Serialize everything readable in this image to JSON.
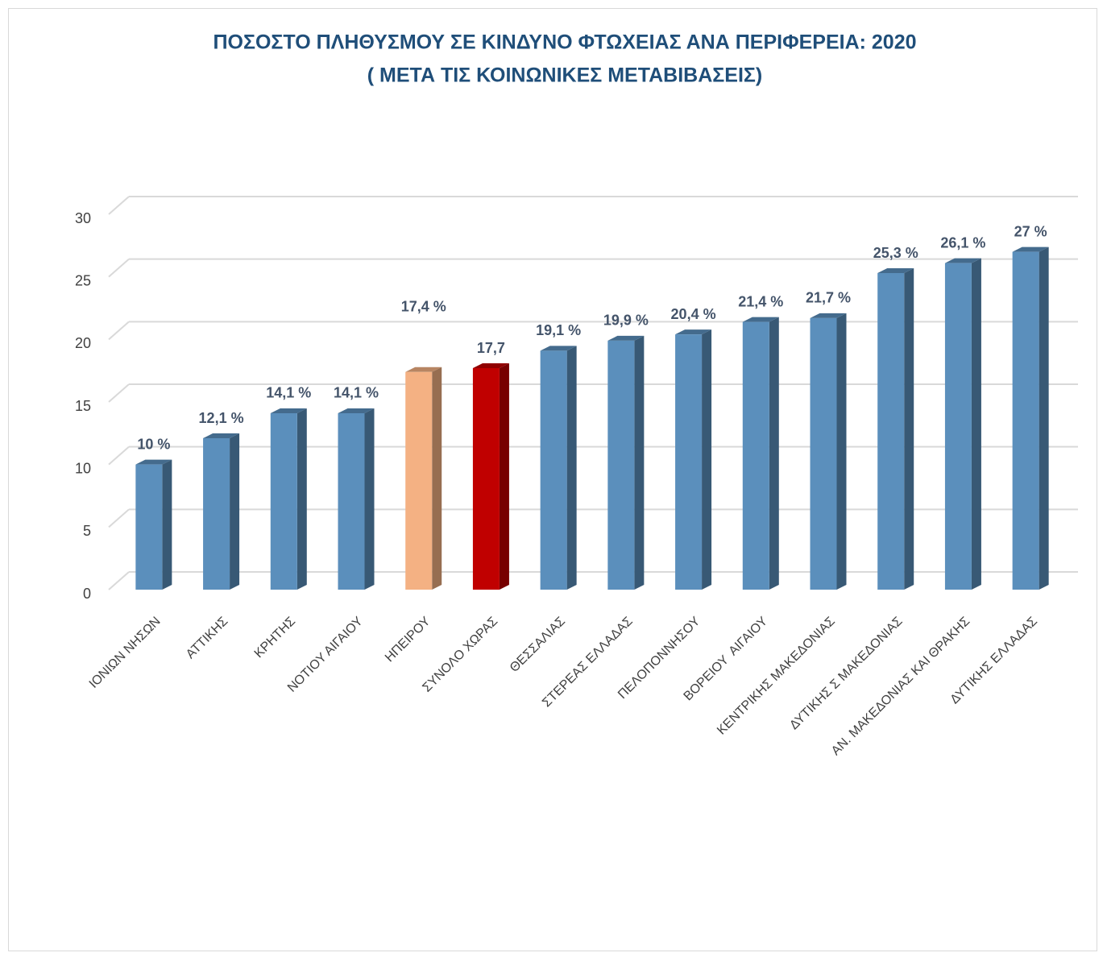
{
  "chart_data": {
    "type": "bar",
    "title": "ΠΟΣΟΣΤΟ ΠΛΗΘΥΣΜΟΥ ΣΕ ΚΙΝΔΥΝΟ ΦΤΩΧΕΙΑΣ ΑΝΑ ΠΕΡΙΦΕΡΕΙΑ: 2020",
    "subtitle": "( ΜΕΤΑ ΤΙΣ ΚΟΙΝΩΝΙΚΕΣ ΜΕΤΑΒΙΒΑΣΕΙΣ)",
    "categories": [
      "ΙΟΝΙΩΝ ΝΗΣΩΝ",
      "ΑΤΤΙΚΗΣ",
      "ΚΡΗΤΗΣ",
      "ΝΟΤΙΟΥ ΑΙΓΑΙΟΥ",
      "ΗΠΕΙΡΟΥ",
      "ΣΥΝΟΛΟ ΧΩΡΑΣ",
      "ΘΕΣΣΑΛΙΑΣ",
      "ΣΤΕΡΕΑΣ ΕΛΛΑΔΑΣ",
      "ΠΕΛΟΠΟΝΝΗΣΟΥ",
      "ΒΟΡΕΙΟΥ  ΑΙΓΑΙΟΥ",
      "ΚΕΝΤΡΙΚΗΣ ΜΑΚΕΔΟΝΙΑΣ",
      "ΔΥΤΙΚΗΣ Σ ΜΑΚΕΔΟΝΙΑΣ",
      "ΑΝ. ΜΑΚΕΔΟΝΙΑΣ ΚΑΙ ΘΡΑΚΗΣ",
      "ΔΥΤΙΚΗΣ ΕΛΛΑΔΑΣ"
    ],
    "values": [
      10,
      12.1,
      14.1,
      14.1,
      17.4,
      17.7,
      19.1,
      19.9,
      20.4,
      21.4,
      21.7,
      25.3,
      26.1,
      27
    ],
    "value_labels": [
      "10 %",
      "12,1 %",
      "14,1 %",
      "14,1 %",
      "17,4 %",
      "17,7",
      "19,1 %",
      "19,9 %",
      "20,4 %",
      "21,4 %",
      "21,7 %",
      "25,3 %",
      "26,1 %",
      "27 %"
    ],
    "colors": [
      "#5b8fbc",
      "#5b8fbc",
      "#5b8fbc",
      "#5b8fbc",
      "#f4b183",
      "#c00000",
      "#5b8fbc",
      "#5b8fbc",
      "#5b8fbc",
      "#5b8fbc",
      "#5b8fbc",
      "#5b8fbc",
      "#5b8fbc",
      "#5b8fbc"
    ],
    "ylim": [
      0,
      30
    ],
    "yticks": [
      0,
      5,
      10,
      15,
      20,
      25,
      30
    ],
    "grid": true
  }
}
